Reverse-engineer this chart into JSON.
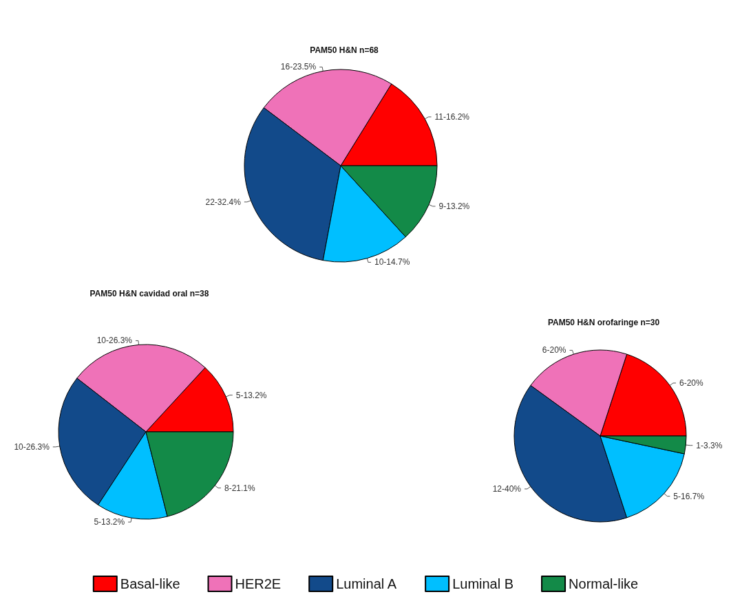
{
  "chart_data": [
    {
      "type": "pie",
      "title": "PAM50 H&N n=68",
      "categories": [
        "Basal-like",
        "HER2E",
        "Luminal A",
        "Luminal B",
        "Normal-like"
      ],
      "values": [
        11,
        16,
        22,
        10,
        9
      ],
      "value_labels": [
        "11-16.2%",
        "16-23.5%",
        "22-32.4%",
        "10-14.7%",
        "9-13.2%"
      ],
      "colors": [
        "#ff0000",
        "#ef72b8",
        "#124a8a",
        "#00bfff",
        "#138a48"
      ],
      "legend": "bottom"
    },
    {
      "type": "pie",
      "title": "PAM50 H&N cavidad oral n=38",
      "categories": [
        null,
        null,
        null,
        null,
        null
      ],
      "values": [
        5,
        10,
        10,
        5,
        8
      ],
      "value_labels": [
        "5-13.2%",
        "10-26.3%",
        "10-26.3%",
        "5-13.2%",
        "8-21.1%"
      ],
      "colors": [
        "#ff0000",
        "#ef72b8",
        "#124a8a",
        "#00bfff",
        "#138a48"
      ]
    },
    {
      "type": "pie",
      "title": "PAM50 H&N orofaringe n=30",
      "categories": [
        null,
        null,
        null,
        null,
        null
      ],
      "values": [
        6,
        6,
        12,
        5,
        1
      ],
      "value_labels": [
        "6-20%",
        "6-20%",
        "12-40%",
        "5-16.7%",
        "1-3.3%"
      ],
      "colors": [
        "#ff0000",
        "#ef72b8",
        "#124a8a",
        "#00bfff",
        "#138a48"
      ]
    }
  ]
}
